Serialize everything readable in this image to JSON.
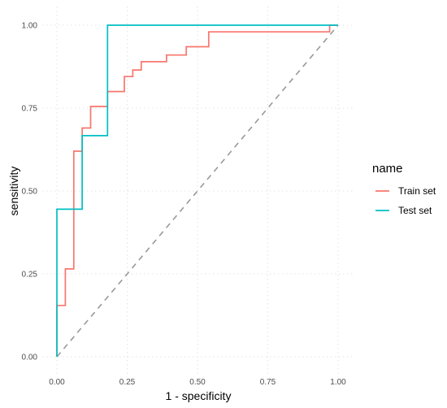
{
  "chart_data": {
    "type": "line",
    "title": "",
    "xlabel": "1 - specificity",
    "ylabel": "sensitivity",
    "xlim": [
      0,
      1
    ],
    "ylim": [
      0,
      1
    ],
    "x_ticks": [
      "0.00",
      "0.25",
      "0.50",
      "0.75",
      "1.00"
    ],
    "y_ticks": [
      "0.00",
      "0.25",
      "0.50",
      "0.75",
      "1.00"
    ],
    "grid": true,
    "legend": {
      "title": "name",
      "placement": "right"
    },
    "series": [
      {
        "name": "Train set",
        "color": "#F8766D",
        "step": true,
        "x": [
          0.0,
          0.0,
          0.03,
          0.03,
          0.06,
          0.06,
          0.09,
          0.09,
          0.12,
          0.12,
          0.18,
          0.18,
          0.24,
          0.24,
          0.27,
          0.27,
          0.3,
          0.3,
          0.39,
          0.39,
          0.46,
          0.46,
          0.54,
          0.54,
          0.97,
          0.97,
          1.0
        ],
        "y": [
          0.0,
          0.155,
          0.155,
          0.265,
          0.265,
          0.62,
          0.62,
          0.69,
          0.69,
          0.755,
          0.755,
          0.8,
          0.8,
          0.845,
          0.845,
          0.865,
          0.865,
          0.89,
          0.89,
          0.91,
          0.91,
          0.935,
          0.935,
          0.98,
          0.98,
          1.0,
          1.0
        ]
      },
      {
        "name": "Test set",
        "color": "#00BFC4",
        "step": true,
        "x": [
          0.0,
          0.0,
          0.09,
          0.09,
          0.18,
          0.18,
          1.0
        ],
        "y": [
          0.0,
          0.445,
          0.445,
          0.667,
          0.667,
          1.0,
          1.0
        ]
      }
    ],
    "reference_line": {
      "x": [
        0,
        1
      ],
      "y": [
        0,
        1
      ],
      "color": "#999999",
      "style": "dashed"
    }
  }
}
